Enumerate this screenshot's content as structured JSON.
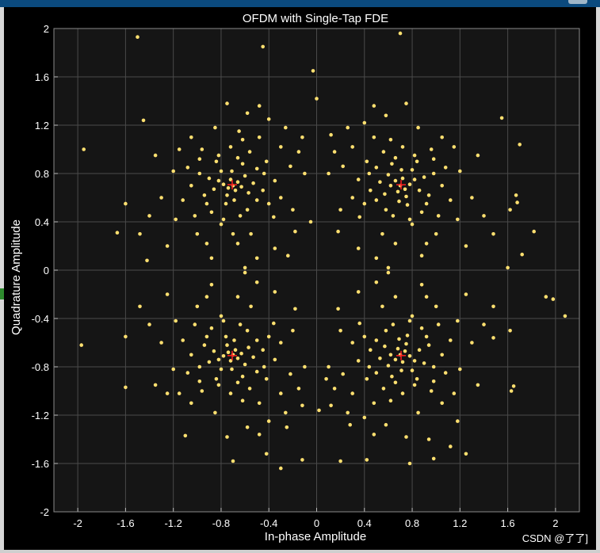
{
  "colors": {
    "figure_background": "#000000",
    "axes_background": "#151515",
    "grid": "#4a4a4a",
    "point": "#ffe070",
    "reference": "#ff2020",
    "text": "#ffffff"
  },
  "watermark": "CSDN @了了]",
  "chart_data": {
    "type": "scatter",
    "title": "OFDM with Single-Tap FDE",
    "xlabel": "In-phase Amplitude",
    "ylabel": "Quadrature Amplitude",
    "xlim": [
      -2.2,
      2.2
    ],
    "ylim": [
      -2,
      2
    ],
    "xticks": [
      -2,
      -1.6,
      -1.2,
      -0.8,
      -0.4,
      0,
      0.4,
      0.8,
      1.2,
      1.6,
      2
    ],
    "yticks": [
      -2,
      -1.6,
      -1.2,
      -0.8,
      -0.4,
      0,
      0.4,
      0.8,
      1.2,
      1.6,
      2
    ],
    "grid": true,
    "reference_points": [
      {
        "x": -0.707,
        "y": 0.707
      },
      {
        "x": 0.707,
        "y": 0.707
      },
      {
        "x": -0.707,
        "y": -0.707
      },
      {
        "x": 0.707,
        "y": -0.707
      }
    ],
    "points": [
      [
        -0.7,
        0.7
      ],
      [
        -0.66,
        0.73
      ],
      [
        -0.74,
        0.68
      ],
      [
        -0.72,
        0.75
      ],
      [
        -0.68,
        0.66
      ],
      [
        -0.78,
        0.71
      ],
      [
        -0.63,
        0.69
      ],
      [
        -0.75,
        0.62
      ],
      [
        -0.82,
        0.74
      ],
      [
        -0.6,
        0.78
      ],
      [
        -0.71,
        0.82
      ],
      [
        -0.86,
        0.67
      ],
      [
        -0.57,
        0.64
      ],
      [
        -0.69,
        0.58
      ],
      [
        -0.8,
        0.82
      ],
      [
        -0.62,
        0.88
      ],
      [
        -0.9,
        0.76
      ],
      [
        -0.53,
        0.72
      ],
      [
        -0.76,
        0.55
      ],
      [
        -0.66,
        0.93
      ],
      [
        -0.94,
        0.62
      ],
      [
        -0.5,
        0.84
      ],
      [
        -0.84,
        0.9
      ],
      [
        -0.58,
        0.5
      ],
      [
        -0.98,
        0.8
      ],
      [
        -0.45,
        0.66
      ],
      [
        -0.72,
        1.02
      ],
      [
        -0.88,
        0.48
      ],
      [
        -0.42,
        0.9
      ],
      [
        -1.05,
        0.7
      ],
      [
        -0.62,
        1.08
      ],
      [
        -0.35,
        0.74
      ],
      [
        -0.96,
        1.0
      ],
      [
        -0.8,
        0.38
      ],
      [
        -1.12,
        0.58
      ],
      [
        -0.48,
        1.1
      ],
      [
        -0.3,
        0.6
      ],
      [
        -1.0,
        0.3
      ],
      [
        -0.55,
        0.3
      ],
      [
        -0.85,
        1.18
      ],
      [
        -0.58,
        1.3
      ],
      [
        -0.4,
        1.25
      ],
      [
        -0.3,
        1.02
      ],
      [
        -1.2,
        0.82
      ],
      [
        -1.3,
        0.6
      ],
      [
        -1.18,
        0.42
      ],
      [
        -0.66,
        0.22
      ],
      [
        -0.92,
        0.22
      ],
      [
        -0.36,
        0.44
      ],
      [
        -0.22,
        0.86
      ],
      [
        -1.4,
        0.45
      ],
      [
        -1.25,
        0.2
      ],
      [
        -0.5,
        0.1
      ],
      [
        -0.2,
        0.5
      ],
      [
        -0.15,
        0.98
      ],
      [
        -1.05,
        1.1
      ],
      [
        -0.75,
        1.38
      ],
      [
        -0.48,
        1.36
      ],
      [
        -0.26,
        1.18
      ],
      [
        -1.35,
        0.95
      ],
      [
        -0.88,
        0.1
      ],
      [
        -1.02,
        0.45
      ],
      [
        -1.15,
        1.0
      ],
      [
        -0.18,
        0.32
      ],
      [
        -0.1,
        0.8
      ],
      [
        -1.48,
        0.3
      ],
      [
        -0.6,
        0.02
      ],
      [
        -1.6,
        0.55
      ],
      [
        -0.35,
        0.18
      ],
      [
        -0.12,
        1.1
      ],
      [
        -0.82,
        0.95
      ],
      [
        -0.64,
        0.45
      ],
      [
        -0.56,
        0.98
      ],
      [
        -0.92,
        0.55
      ],
      [
        -0.5,
        0.58
      ],
      [
        -0.78,
        0.42
      ],
      [
        -0.98,
        0.92
      ],
      [
        -0.44,
        0.8
      ],
      [
        -1.08,
        0.85
      ],
      [
        -0.4,
        0.55
      ],
      [
        -1.5,
        1.93
      ],
      [
        -1.45,
        1.24
      ],
      [
        -1.95,
        1.0
      ],
      [
        -1.67,
        0.31
      ],
      [
        -1.42,
        0.08
      ],
      [
        -0.45,
        1.85
      ],
      [
        -0.65,
        1.15
      ],
      [
        -0.05,
        0.4
      ],
      [
        -0.24,
        0.12
      ],
      [
        -0.7,
        0.3
      ],
      [
        0.7,
        0.7
      ],
      [
        0.66,
        0.74
      ],
      [
        0.74,
        0.67
      ],
      [
        0.72,
        0.76
      ],
      [
        0.68,
        0.65
      ],
      [
        0.78,
        0.71
      ],
      [
        0.62,
        0.7
      ],
      [
        0.75,
        0.61
      ],
      [
        0.82,
        0.75
      ],
      [
        0.6,
        0.79
      ],
      [
        0.71,
        0.83
      ],
      [
        0.86,
        0.66
      ],
      [
        0.57,
        0.63
      ],
      [
        0.69,
        0.57
      ],
      [
        0.8,
        0.83
      ],
      [
        0.63,
        0.88
      ],
      [
        0.9,
        0.77
      ],
      [
        0.53,
        0.73
      ],
      [
        0.76,
        0.54
      ],
      [
        0.66,
        0.93
      ],
      [
        0.94,
        0.62
      ],
      [
        0.5,
        0.85
      ],
      [
        0.84,
        0.9
      ],
      [
        0.58,
        0.5
      ],
      [
        0.98,
        0.8
      ],
      [
        0.45,
        0.66
      ],
      [
        0.72,
        1.02
      ],
      [
        0.88,
        0.48
      ],
      [
        0.42,
        0.9
      ],
      [
        1.05,
        0.7
      ],
      [
        0.62,
        1.08
      ],
      [
        0.35,
        0.75
      ],
      [
        0.96,
        1.0
      ],
      [
        0.8,
        0.38
      ],
      [
        1.12,
        0.58
      ],
      [
        0.48,
        1.1
      ],
      [
        0.3,
        0.6
      ],
      [
        1.0,
        0.3
      ],
      [
        0.55,
        0.3
      ],
      [
        0.85,
        1.18
      ],
      [
        0.58,
        1.28
      ],
      [
        0.4,
        1.22
      ],
      [
        0.3,
        1.02
      ],
      [
        1.2,
        0.82
      ],
      [
        1.3,
        0.6
      ],
      [
        1.18,
        0.42
      ],
      [
        0.66,
        0.22
      ],
      [
        0.92,
        0.22
      ],
      [
        0.36,
        0.44
      ],
      [
        0.22,
        0.86
      ],
      [
        1.4,
        0.45
      ],
      [
        1.25,
        0.2
      ],
      [
        0.5,
        0.1
      ],
      [
        0.2,
        0.5
      ],
      [
        0.15,
        0.98
      ],
      [
        1.05,
        1.1
      ],
      [
        0.75,
        1.38
      ],
      [
        0.48,
        1.36
      ],
      [
        0.26,
        1.18
      ],
      [
        1.35,
        0.95
      ],
      [
        0.88,
        0.12
      ],
      [
        1.02,
        0.45
      ],
      [
        1.15,
        1.02
      ],
      [
        0.18,
        0.32
      ],
      [
        0.1,
        0.8
      ],
      [
        1.48,
        0.3
      ],
      [
        0.6,
        0.02
      ],
      [
        1.62,
        0.5
      ],
      [
        0.35,
        0.18
      ],
      [
        0.12,
        1.12
      ],
      [
        0.82,
        0.95
      ],
      [
        0.64,
        0.45
      ],
      [
        0.56,
        0.98
      ],
      [
        0.92,
        0.55
      ],
      [
        0.5,
        0.58
      ],
      [
        0.78,
        0.42
      ],
      [
        0.98,
        0.92
      ],
      [
        0.44,
        0.8
      ],
      [
        1.08,
        0.85
      ],
      [
        0.4,
        0.55
      ],
      [
        0.7,
        1.96
      ],
      [
        0.0,
        1.42
      ],
      [
        -0.03,
        1.65
      ],
      [
        1.55,
        1.26
      ],
      [
        1.7,
        1.04
      ],
      [
        1.67,
        0.62
      ],
      [
        1.68,
        0.56
      ],
      [
        1.82,
        0.32
      ],
      [
        1.72,
        0.13
      ],
      [
        1.6,
        0.02
      ],
      [
        -0.7,
        -0.7
      ],
      [
        -0.66,
        -0.73
      ],
      [
        -0.74,
        -0.68
      ],
      [
        -0.72,
        -0.75
      ],
      [
        -0.68,
        -0.66
      ],
      [
        -0.78,
        -0.71
      ],
      [
        -0.63,
        -0.69
      ],
      [
        -0.75,
        -0.62
      ],
      [
        -0.82,
        -0.74
      ],
      [
        -0.6,
        -0.78
      ],
      [
        -0.71,
        -0.82
      ],
      [
        -0.86,
        -0.67
      ],
      [
        -0.57,
        -0.64
      ],
      [
        -0.69,
        -0.58
      ],
      [
        -0.8,
        -0.82
      ],
      [
        -0.62,
        -0.88
      ],
      [
        -0.9,
        -0.76
      ],
      [
        -0.53,
        -0.72
      ],
      [
        -0.76,
        -0.55
      ],
      [
        -0.66,
        -0.93
      ],
      [
        -0.94,
        -0.62
      ],
      [
        -0.5,
        -0.84
      ],
      [
        -0.84,
        -0.9
      ],
      [
        -0.58,
        -0.5
      ],
      [
        -0.98,
        -0.8
      ],
      [
        -0.45,
        -0.66
      ],
      [
        -0.72,
        -1.02
      ],
      [
        -0.88,
        -0.48
      ],
      [
        -0.42,
        -0.9
      ],
      [
        -1.05,
        -0.7
      ],
      [
        -0.62,
        -1.08
      ],
      [
        -0.35,
        -0.74
      ],
      [
        -0.96,
        -1.0
      ],
      [
        -0.8,
        -0.38
      ],
      [
        -1.12,
        -0.58
      ],
      [
        -0.48,
        -1.1
      ],
      [
        -0.3,
        -0.6
      ],
      [
        -1.0,
        -0.3
      ],
      [
        -0.55,
        -0.3
      ],
      [
        -0.85,
        -1.18
      ],
      [
        -0.58,
        -1.3
      ],
      [
        -0.4,
        -1.25
      ],
      [
        -0.3,
        -1.02
      ],
      [
        -1.2,
        -0.82
      ],
      [
        -1.3,
        -0.6
      ],
      [
        -1.18,
        -0.42
      ],
      [
        -0.66,
        -0.22
      ],
      [
        -0.92,
        -0.22
      ],
      [
        -0.36,
        -0.44
      ],
      [
        -0.22,
        -0.86
      ],
      [
        -1.4,
        -0.45
      ],
      [
        -1.25,
        -0.2
      ],
      [
        -0.5,
        -0.1
      ],
      [
        -0.2,
        -0.5
      ],
      [
        -0.15,
        -0.98
      ],
      [
        -1.05,
        -1.1
      ],
      [
        -0.75,
        -1.38
      ],
      [
        -0.48,
        -1.36
      ],
      [
        -0.26,
        -1.18
      ],
      [
        -1.35,
        -0.95
      ],
      [
        -0.88,
        -0.12
      ],
      [
        -1.02,
        -0.45
      ],
      [
        -1.15,
        -1.02
      ],
      [
        -0.18,
        -0.32
      ],
      [
        -0.1,
        -0.8
      ],
      [
        -1.48,
        -0.3
      ],
      [
        -0.6,
        -0.02
      ],
      [
        -1.6,
        -0.55
      ],
      [
        -0.35,
        -0.18
      ],
      [
        -0.12,
        -1.12
      ],
      [
        -0.82,
        -0.95
      ],
      [
        -0.64,
        -0.45
      ],
      [
        -0.56,
        -0.98
      ],
      [
        -0.92,
        -0.55
      ],
      [
        -0.5,
        -0.58
      ],
      [
        -0.78,
        -0.42
      ],
      [
        -0.98,
        -0.92
      ],
      [
        -0.44,
        -0.8
      ],
      [
        -1.08,
        -0.85
      ],
      [
        -0.4,
        -0.55
      ],
      [
        -1.97,
        -0.62
      ],
      [
        -1.6,
        -0.97
      ],
      [
        -1.1,
        -1.37
      ],
      [
        -0.42,
        -1.52
      ],
      [
        -0.3,
        -1.64
      ],
      [
        -0.12,
        -1.57
      ],
      [
        0.02,
        -1.16
      ],
      [
        -0.25,
        -1.3
      ],
      [
        -0.7,
        -1.58
      ],
      [
        -1.25,
        -1.02
      ],
      [
        0.7,
        -0.7
      ],
      [
        0.66,
        -0.74
      ],
      [
        0.74,
        -0.67
      ],
      [
        0.72,
        -0.76
      ],
      [
        0.68,
        -0.65
      ],
      [
        0.78,
        -0.71
      ],
      [
        0.62,
        -0.7
      ],
      [
        0.75,
        -0.61
      ],
      [
        0.82,
        -0.75
      ],
      [
        0.6,
        -0.79
      ],
      [
        0.71,
        -0.83
      ],
      [
        0.86,
        -0.66
      ],
      [
        0.57,
        -0.63
      ],
      [
        0.69,
        -0.57
      ],
      [
        0.8,
        -0.83
      ],
      [
        0.63,
        -0.88
      ],
      [
        0.9,
        -0.77
      ],
      [
        0.53,
        -0.73
      ],
      [
        0.76,
        -0.54
      ],
      [
        0.66,
        -0.93
      ],
      [
        0.94,
        -0.62
      ],
      [
        0.5,
        -0.85
      ],
      [
        0.84,
        -0.9
      ],
      [
        0.58,
        -0.5
      ],
      [
        0.98,
        -0.8
      ],
      [
        0.45,
        -0.66
      ],
      [
        0.72,
        -1.02
      ],
      [
        0.88,
        -0.48
      ],
      [
        0.42,
        -0.9
      ],
      [
        1.05,
        -0.7
      ],
      [
        0.62,
        -1.08
      ],
      [
        0.35,
        -0.75
      ],
      [
        0.96,
        -1.0
      ],
      [
        0.8,
        -0.38
      ],
      [
        1.12,
        -0.58
      ],
      [
        0.48,
        -1.1
      ],
      [
        0.3,
        -0.6
      ],
      [
        1.0,
        -0.3
      ],
      [
        0.55,
        -0.3
      ],
      [
        0.85,
        -1.18
      ],
      [
        0.58,
        -1.28
      ],
      [
        0.4,
        -1.22
      ],
      [
        0.3,
        -1.02
      ],
      [
        1.2,
        -0.82
      ],
      [
        1.3,
        -0.6
      ],
      [
        1.18,
        -0.42
      ],
      [
        0.66,
        -0.22
      ],
      [
        0.92,
        -0.22
      ],
      [
        0.36,
        -0.44
      ],
      [
        0.22,
        -0.86
      ],
      [
        1.4,
        -0.45
      ],
      [
        1.25,
        -0.2
      ],
      [
        0.5,
        -0.1
      ],
      [
        0.2,
        -0.5
      ],
      [
        0.15,
        -0.98
      ],
      [
        1.05,
        -1.1
      ],
      [
        0.75,
        -1.38
      ],
      [
        0.48,
        -1.36
      ],
      [
        0.26,
        -1.18
      ],
      [
        1.35,
        -0.95
      ],
      [
        0.88,
        -0.12
      ],
      [
        1.02,
        -0.45
      ],
      [
        1.15,
        -1.02
      ],
      [
        0.18,
        -0.32
      ],
      [
        0.1,
        -0.8
      ],
      [
        1.48,
        -0.3
      ],
      [
        0.6,
        -0.02
      ],
      [
        1.62,
        -0.5
      ],
      [
        0.35,
        -0.18
      ],
      [
        0.12,
        -1.12
      ],
      [
        0.82,
        -0.95
      ],
      [
        0.64,
        -0.45
      ],
      [
        0.56,
        -0.98
      ],
      [
        0.92,
        -0.55
      ],
      [
        0.5,
        -0.58
      ],
      [
        0.78,
        -0.42
      ],
      [
        0.98,
        -0.92
      ],
      [
        0.44,
        -0.8
      ],
      [
        1.08,
        -0.85
      ],
      [
        0.4,
        -0.55
      ],
      [
        1.92,
        -0.22
      ],
      [
        1.98,
        -0.24
      ],
      [
        2.08,
        -0.38
      ],
      [
        1.65,
        -0.96
      ],
      [
        1.63,
        -1.0
      ],
      [
        1.25,
        -1.52
      ],
      [
        1.12,
        -1.46
      ],
      [
        0.98,
        -1.56
      ],
      [
        0.42,
        -1.57
      ],
      [
        0.2,
        -1.58
      ],
      [
        1.48,
        -0.56
      ],
      [
        0.78,
        -1.6
      ],
      [
        0.94,
        -1.4
      ],
      [
        1.18,
        -1.25
      ],
      [
        0.28,
        -1.28
      ],
      [
        0.08,
        -0.9
      ]
    ]
  }
}
